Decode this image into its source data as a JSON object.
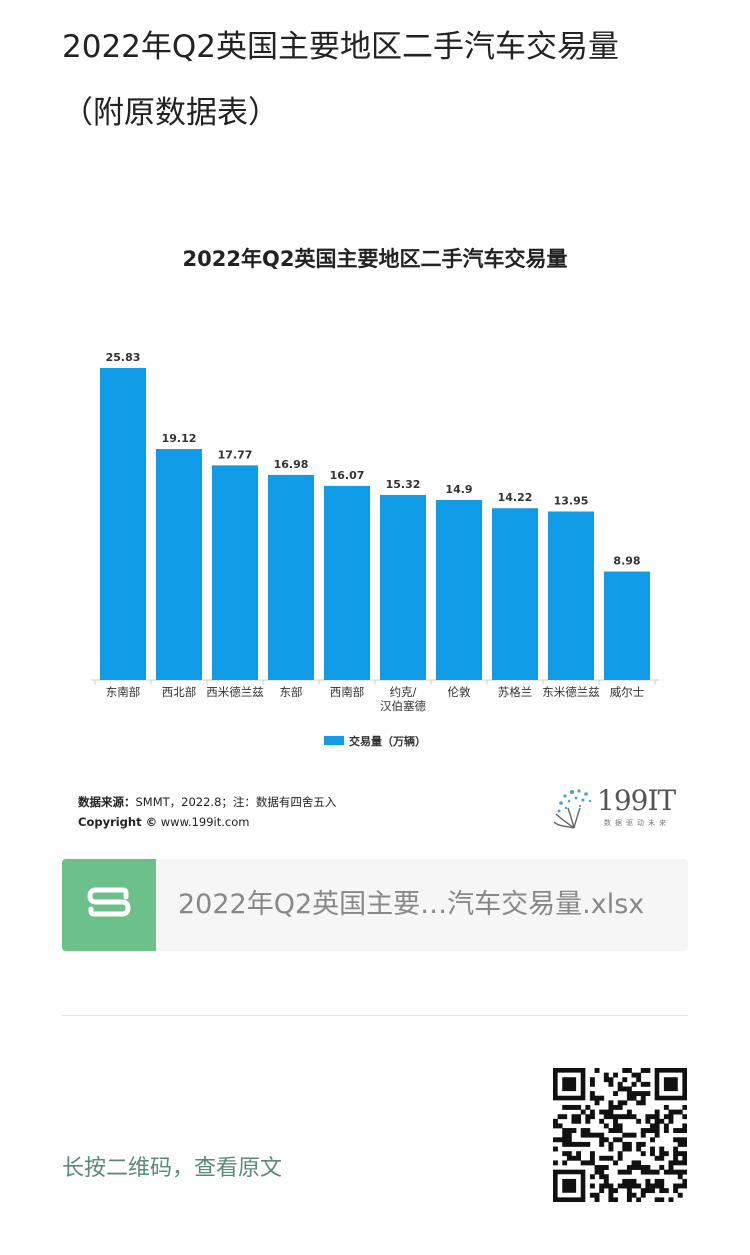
{
  "page": {
    "title_line1": "2022年Q2英国主要地区二手汽车交易量",
    "title_line2": "（附原数据表）"
  },
  "chart_data": {
    "type": "bar",
    "title": "2022年Q2英国主要地区二手汽车交易量",
    "categories": [
      "东南部",
      "西北部",
      "西米德兰兹",
      "东部",
      "西南部",
      "约克/汉伯塞德",
      "伦敦",
      "苏格兰",
      "东米德兰兹",
      "威尔士"
    ],
    "category_lines": [
      [
        "东南部"
      ],
      [
        "西北部"
      ],
      [
        "西米德兰兹"
      ],
      [
        "东部"
      ],
      [
        "西南部"
      ],
      [
        "约克/",
        "汉伯塞德"
      ],
      [
        "伦敦"
      ],
      [
        "苏格兰"
      ],
      [
        "东米德兰兹"
      ],
      [
        "威尔士"
      ]
    ],
    "series": [
      {
        "name": "交易量（万辆）",
        "values": [
          25.83,
          19.12,
          17.77,
          16.98,
          16.07,
          15.32,
          14.9,
          14.22,
          13.95,
          8.98
        ]
      }
    ],
    "value_labels": [
      "25.83",
      "19.12",
      "17.77",
      "16.98",
      "16.07",
      "15.32",
      "14.9",
      "14.22",
      "13.95",
      "8.98"
    ],
    "ylim": [
      0,
      25.83
    ],
    "grid": false,
    "legend_position": "bottom",
    "bar_color": "#0f9be6"
  },
  "source": {
    "label": "数据来源：",
    "text": "SMMT，2022.8；注：数据有四舍五入",
    "copyright_label": "Copyright ©",
    "copyright_text": " www.199it.com"
  },
  "brand": {
    "name": "199IT",
    "tagline": "数据驱动未来"
  },
  "file": {
    "name": "2022年Q2英国主要…汽车交易量.xlsx",
    "icon": "spreadsheet-s-icon",
    "icon_color": "#6cc08a"
  },
  "footer": {
    "hint": "长按二维码，查看原文",
    "qr_icon": "qr-code-icon"
  }
}
